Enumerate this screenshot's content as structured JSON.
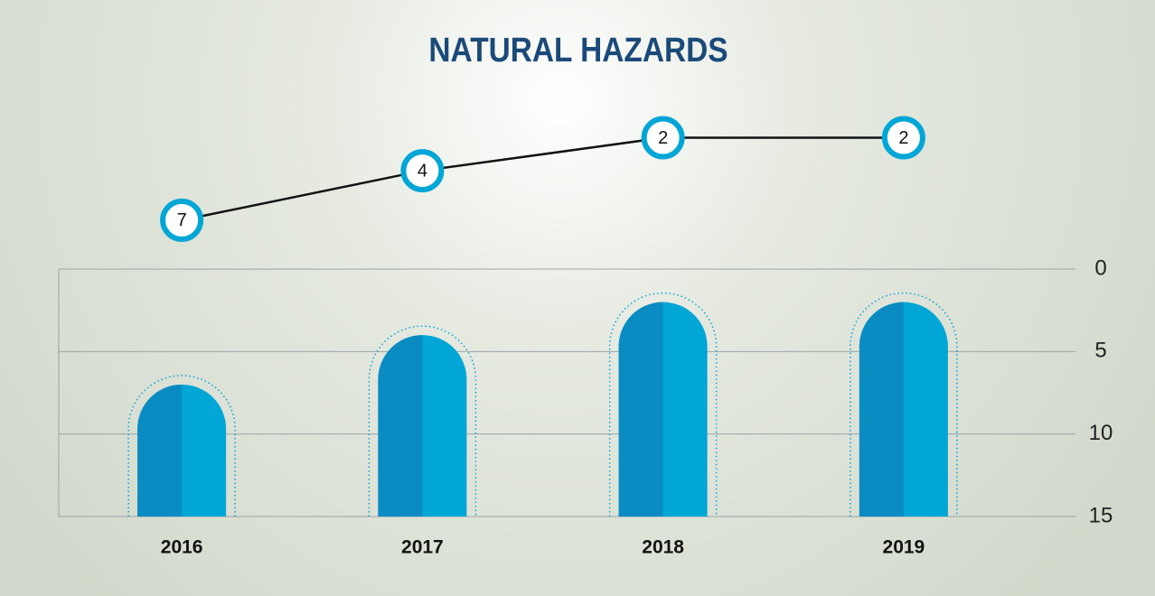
{
  "chart_data": {
    "type": "bar",
    "title": "NATURAL HAZARDS",
    "categories": [
      "2016",
      "2017",
      "2018",
      "2019"
    ],
    "values": [
      7,
      4,
      2,
      2
    ],
    "color": "#00a6d6",
    "shade_color": "#0a8cc2",
    "line_color": "#111111",
    "ylim": [
      0,
      15
    ],
    "y_inverted": true,
    "yticks": [
      0,
      5,
      10,
      15
    ],
    "grid": true
  }
}
